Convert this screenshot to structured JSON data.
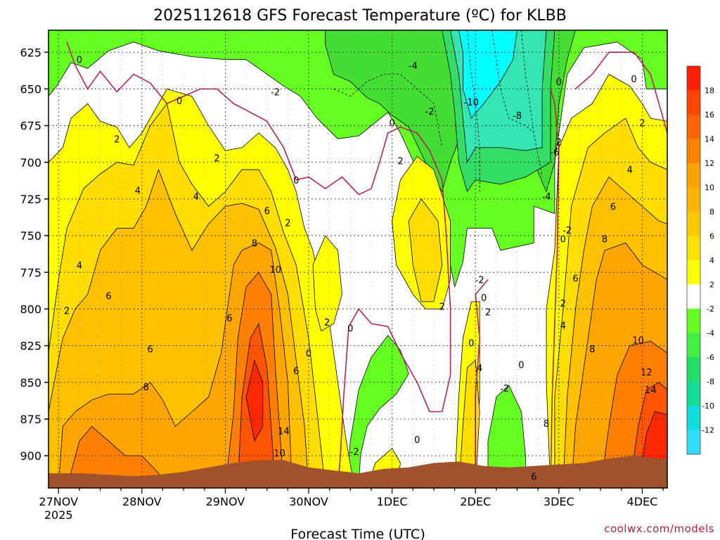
{
  "chart_data": {
    "type": "heatmap",
    "title": "2025112618 GFS Forecast Temperature (ºC) for KLBB",
    "xlabel": "Forecast Time (UTC)",
    "ylabel": "",
    "credit": "coolwx.com/models",
    "x_ticks": [
      {
        "day": 0,
        "label": "27NOV",
        "sublabel": "2025"
      },
      {
        "day": 1,
        "label": "28NOV"
      },
      {
        "day": 2,
        "label": "29NOV"
      },
      {
        "day": 3,
        "label": "30NOV"
      },
      {
        "day": 4,
        "label": "1DEC"
      },
      {
        "day": 5,
        "label": "2DEC"
      },
      {
        "day": 6,
        "label": "3DEC"
      },
      {
        "day": 7,
        "label": "4DEC"
      }
    ],
    "xlim_days": [
      -0.12,
      7.3
    ],
    "y_ticks": [
      625,
      650,
      675,
      700,
      725,
      750,
      775,
      800,
      825,
      850,
      875,
      900
    ],
    "ylim": [
      610,
      922
    ],
    "y_scale": "linear-reversed",
    "colorbar": {
      "labels": [
        "18",
        "16",
        "14",
        "12",
        "10",
        "8",
        "6",
        "4",
        "2",
        "-2",
        "-4",
        "-6",
        "-8",
        "-10",
        "-12"
      ],
      "colors": [
        "#ff2000",
        "#ff4500",
        "#ff6400",
        "#ff8300",
        "#ffa000",
        "#ffb400",
        "#ffc800",
        "#ffe000",
        "#ffff00",
        "#ffffff",
        "#66ff22",
        "#44ee44",
        "#22dd66",
        "#11dd99",
        "#11dddd",
        "#33ddff"
      ]
    },
    "fill_colors": {
      "c_neg10": "#00ffff",
      "c_neg8": "#33e6b3",
      "c_neg6": "#33dd66",
      "c_neg4": "#44dd33",
      "c_neg2": "#66ff22",
      "c_0": "#ffffff",
      "c_2": "#ffff00",
      "c_4": "#ffdd00",
      "c_6": "#ffc000",
      "c_8": "#ffa500",
      "c_10": "#ff8000",
      "c_12": "#ff5500",
      "c_14": "#ff2800",
      "ground": "#a0522d",
      "zero_line": "#bb2255"
    },
    "contour_labels": [
      {
        "text": "0",
        "t": 0.25,
        "p": 630
      },
      {
        "text": "-2",
        "t": 2.6,
        "p": 652
      },
      {
        "text": "-4",
        "t": 4.25,
        "p": 634
      },
      {
        "text": "-10",
        "t": 4.95,
        "p": 659
      },
      {
        "text": "-8",
        "t": 5.5,
        "p": 668
      },
      {
        "text": "-6",
        "t": 5.95,
        "p": 693
      },
      {
        "text": "-2",
        "t": 4.45,
        "p": 665
      },
      {
        "text": "0",
        "t": 1.45,
        "p": 658
      },
      {
        "text": "0",
        "t": 4.0,
        "p": 673
      },
      {
        "text": "2",
        "t": 0.7,
        "p": 684
      },
      {
        "text": "2",
        "t": 1.9,
        "p": 697
      },
      {
        "text": "2",
        "t": 4.1,
        "p": 699
      },
      {
        "text": "0",
        "t": 2.85,
        "p": 712
      },
      {
        "text": "4",
        "t": 0.95,
        "p": 719
      },
      {
        "text": "4",
        "t": 1.65,
        "p": 723
      },
      {
        "text": "6",
        "t": 2.5,
        "p": 733
      },
      {
        "text": "2",
        "t": 2.75,
        "p": 741
      },
      {
        "text": "8",
        "t": 2.35,
        "p": 755
      },
      {
        "text": "10",
        "t": 2.6,
        "p": 773
      },
      {
        "text": "4",
        "t": 0.25,
        "p": 770
      },
      {
        "text": "6",
        "t": 0.6,
        "p": 791
      },
      {
        "text": "6",
        "t": 2.05,
        "p": 806
      },
      {
        "text": "6",
        "t": 1.1,
        "p": 827
      },
      {
        "text": "6",
        "t": 2.85,
        "p": 842
      },
      {
        "text": "8",
        "t": 1.05,
        "p": 853
      },
      {
        "text": "14",
        "t": 2.7,
        "p": 883
      },
      {
        "text": "10",
        "t": 2.65,
        "p": 898
      },
      {
        "text": "2",
        "t": 0.1,
        "p": 801
      },
      {
        "text": "2",
        "t": 3.22,
        "p": 809
      },
      {
        "text": "0",
        "t": 3.5,
        "p": 813
      },
      {
        "text": "-2",
        "t": 3.55,
        "p": 897
      },
      {
        "text": "0",
        "t": 4.3,
        "p": 889
      },
      {
        "text": "2",
        "t": 4.6,
        "p": 798
      },
      {
        "text": "-2",
        "t": 5.05,
        "p": 780
      },
      {
        "text": "2",
        "t": 5.15,
        "p": 802
      },
      {
        "text": "0",
        "t": 5.1,
        "p": 792
      },
      {
        "text": "0",
        "t": 4.95,
        "p": 823
      },
      {
        "text": "4",
        "t": 5.05,
        "p": 840
      },
      {
        "text": "-2",
        "t": 5.35,
        "p": 854
      },
      {
        "text": "0",
        "t": 5.55,
        "p": 838
      },
      {
        "text": "-4",
        "t": 5.85,
        "p": 723
      },
      {
        "text": "-2",
        "t": 6.1,
        "p": 746
      },
      {
        "text": "0",
        "t": 6.05,
        "p": 752
      },
      {
        "text": "2",
        "t": 6.0,
        "p": 686
      },
      {
        "text": "0",
        "t": 6.0,
        "p": 645
      },
      {
        "text": "0",
        "t": 6.9,
        "p": 643
      },
      {
        "text": "2",
        "t": 7.0,
        "p": 673
      },
      {
        "text": "4",
        "t": 6.85,
        "p": 705
      },
      {
        "text": "6",
        "t": 6.65,
        "p": 730
      },
      {
        "text": "8",
        "t": 6.55,
        "p": 752
      },
      {
        "text": "6",
        "t": 6.2,
        "p": 779
      },
      {
        "text": "2",
        "t": 6.05,
        "p": 796
      },
      {
        "text": "4",
        "t": 6.05,
        "p": 811
      },
      {
        "text": "8",
        "t": 6.4,
        "p": 827
      },
      {
        "text": "10",
        "t": 6.95,
        "p": 821
      },
      {
        "text": "12",
        "t": 7.05,
        "p": 843
      },
      {
        "text": "14",
        "t": 7.1,
        "p": 855
      },
      {
        "text": "8",
        "t": 5.85,
        "p": 878
      },
      {
        "text": "6",
        "t": 5.7,
        "p": 914
      },
      {
        "text": "0",
        "t": 3.0,
        "p": 830
      }
    ]
  }
}
